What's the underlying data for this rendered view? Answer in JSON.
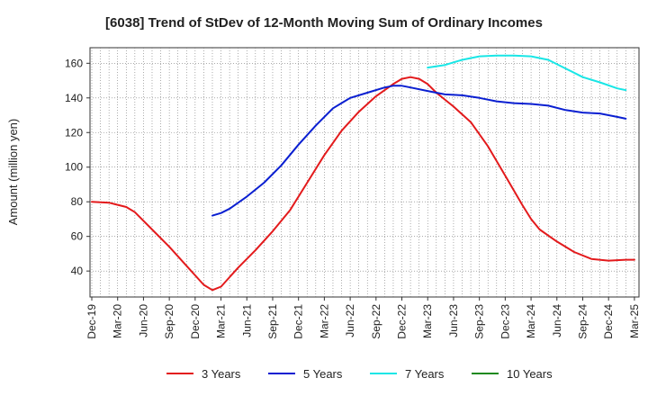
{
  "chart_data": {
    "type": "line",
    "title": "[6038]  Trend of StDev of 12-Month Moving Sum of Ordinary Incomes",
    "xlabel": "",
    "ylabel": "Amount (million yen)",
    "ylim": [
      25,
      169
    ],
    "yticks": [
      40,
      60,
      80,
      100,
      120,
      140,
      160
    ],
    "x_range": [
      0,
      63
    ],
    "x_tick_labels": [
      "Dec-19",
      "Mar-20",
      "Jun-20",
      "Sep-20",
      "Dec-20",
      "Mar-21",
      "Jun-21",
      "Sep-21",
      "Dec-21",
      "Mar-22",
      "Jun-22",
      "Sep-22",
      "Dec-22",
      "Mar-23",
      "Jun-23",
      "Sep-23",
      "Dec-23",
      "Mar-24",
      "Jun-24",
      "Sep-24",
      "Dec-24",
      "Mar-25"
    ],
    "series": [
      {
        "name": "3 Years",
        "color": "#e31a1c",
        "points": [
          [
            0,
            80
          ],
          [
            2,
            79.5
          ],
          [
            4,
            77
          ],
          [
            5,
            74
          ],
          [
            7,
            64
          ],
          [
            9,
            54
          ],
          [
            11,
            43
          ],
          [
            13,
            32
          ],
          [
            14,
            29
          ],
          [
            15,
            31
          ],
          [
            17,
            42
          ],
          [
            19,
            52
          ],
          [
            21,
            63
          ],
          [
            23,
            75
          ],
          [
            25,
            91
          ],
          [
            27,
            107
          ],
          [
            29,
            121
          ],
          [
            31,
            132
          ],
          [
            33,
            141
          ],
          [
            35,
            148
          ],
          [
            36,
            151
          ],
          [
            37,
            152
          ],
          [
            38,
            151
          ],
          [
            39,
            148
          ],
          [
            40,
            143
          ],
          [
            42,
            135
          ],
          [
            44,
            126
          ],
          [
            46,
            112
          ],
          [
            48,
            95
          ],
          [
            50,
            78
          ],
          [
            51,
            70
          ],
          [
            52,
            64
          ],
          [
            54,
            57
          ],
          [
            56,
            51
          ],
          [
            58,
            47
          ],
          [
            60,
            46
          ],
          [
            62,
            46.5
          ],
          [
            63,
            46.5
          ]
        ]
      },
      {
        "name": "5 Years",
        "color": "#0a1fd1",
        "points": [
          [
            14,
            72
          ],
          [
            15,
            73.5
          ],
          [
            16,
            76
          ],
          [
            18,
            83
          ],
          [
            20,
            91
          ],
          [
            22,
            101
          ],
          [
            24,
            113
          ],
          [
            26,
            124
          ],
          [
            28,
            134
          ],
          [
            30,
            140
          ],
          [
            32,
            143
          ],
          [
            34,
            146
          ],
          [
            35,
            147
          ],
          [
            36,
            147
          ],
          [
            37,
            146
          ],
          [
            39,
            144
          ],
          [
            41,
            142
          ],
          [
            43,
            141.5
          ],
          [
            45,
            140
          ],
          [
            47,
            138
          ],
          [
            49,
            137
          ],
          [
            51,
            136.5
          ],
          [
            53,
            135.5
          ],
          [
            55,
            133
          ],
          [
            57,
            131.5
          ],
          [
            59,
            131
          ],
          [
            61,
            129
          ],
          [
            62,
            128
          ]
        ]
      },
      {
        "name": "7 Years",
        "color": "#19e6e6",
        "points": [
          [
            39,
            157.5
          ],
          [
            41,
            159
          ],
          [
            43,
            162
          ],
          [
            45,
            164
          ],
          [
            47,
            164.5
          ],
          [
            49,
            164.5
          ],
          [
            51,
            164
          ],
          [
            53,
            162
          ],
          [
            55,
            157
          ],
          [
            57,
            152
          ],
          [
            59,
            149
          ],
          [
            61,
            145.5
          ],
          [
            62,
            144.5
          ]
        ]
      },
      {
        "name": "10 Years",
        "color": "#1f8a1f",
        "points": []
      }
    ]
  }
}
